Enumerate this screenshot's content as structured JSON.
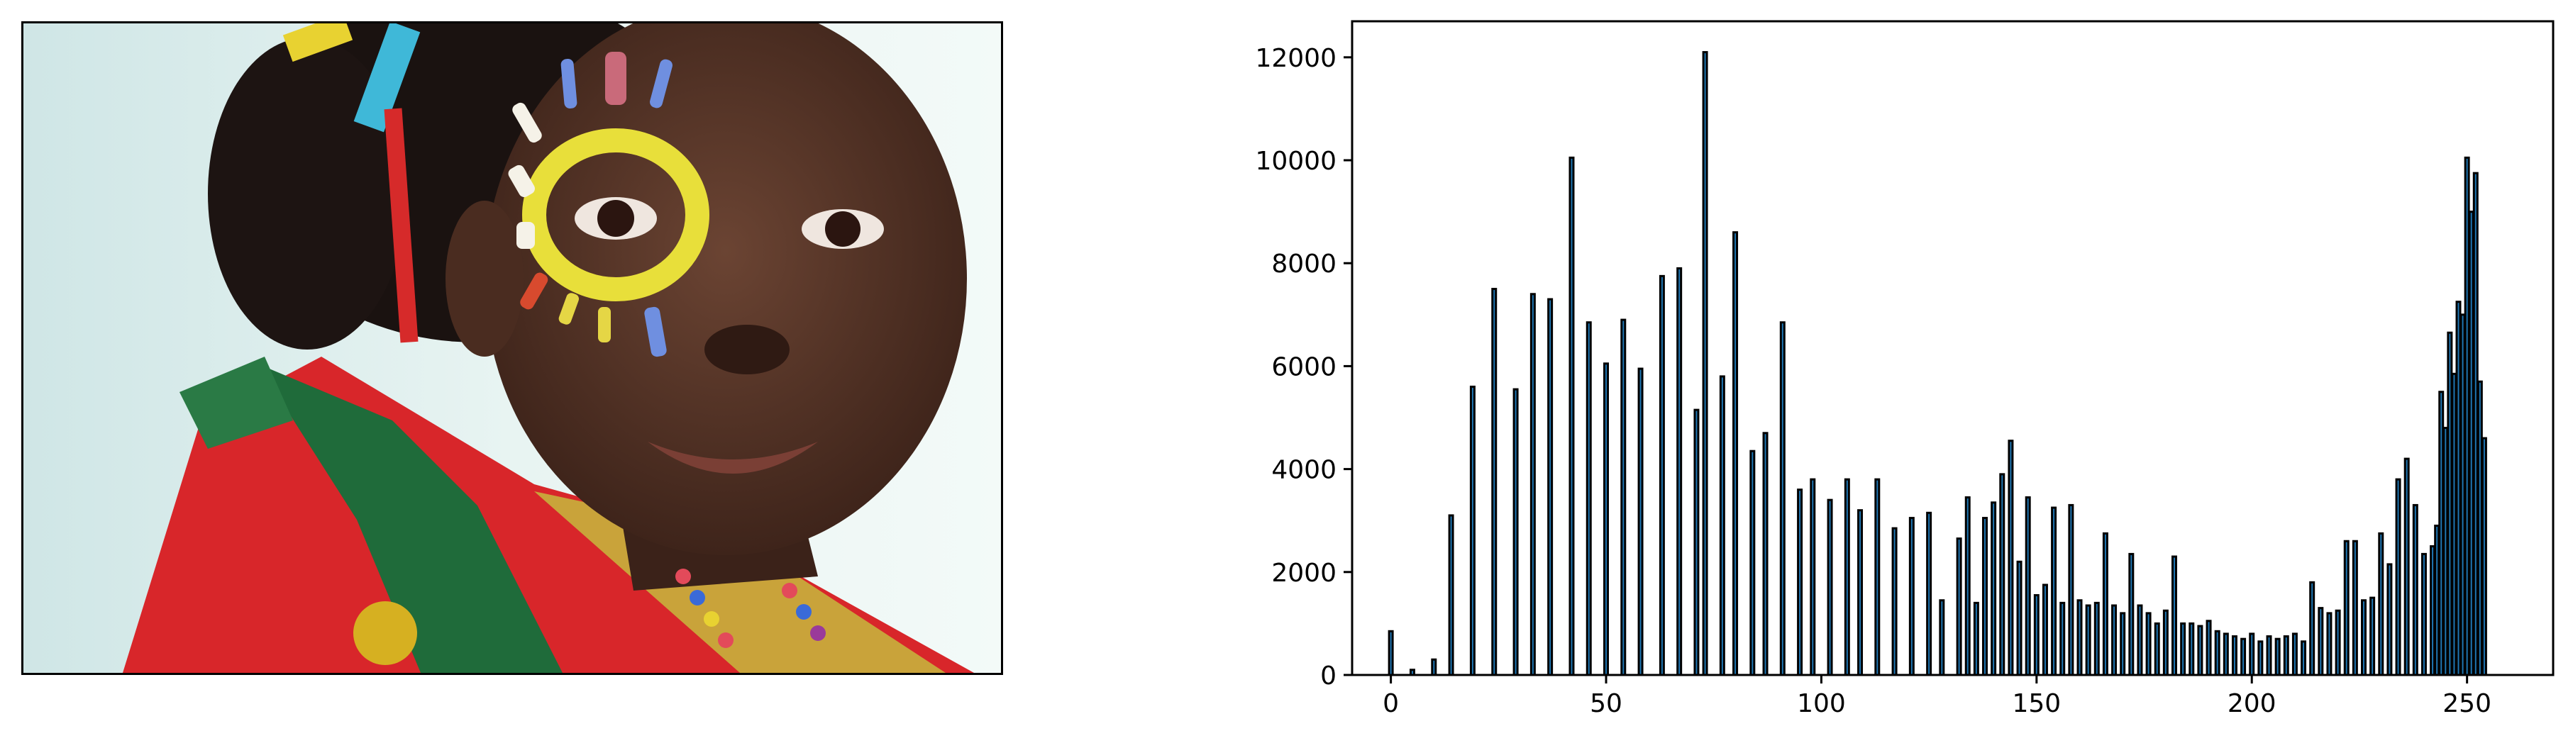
{
  "image_panel": {
    "description_icon": "portrait-photo-icon"
  },
  "chart_data": {
    "type": "bar",
    "title": "",
    "xlabel": "",
    "ylabel": "",
    "xlim": [
      -9,
      270
    ],
    "ylim": [
      0,
      12700
    ],
    "x_ticks": [
      0,
      50,
      100,
      150,
      200,
      250
    ],
    "y_ticks": [
      0,
      2000,
      4000,
      6000,
      8000,
      10000,
      12000
    ],
    "bar_color": "#1f77b4",
    "edge_color": "#000000",
    "grid": false,
    "x": [
      0,
      5,
      10,
      14,
      19,
      24,
      29,
      33,
      37,
      42,
      46,
      50,
      54,
      58,
      63,
      67,
      71,
      73,
      77,
      80,
      84,
      87,
      91,
      95,
      98,
      102,
      106,
      109,
      113,
      117,
      121,
      125,
      128,
      132,
      134,
      136,
      138,
      140,
      142,
      144,
      146,
      148,
      150,
      152,
      154,
      156,
      158,
      160,
      162,
      164,
      166,
      168,
      170,
      172,
      174,
      176,
      178,
      180,
      182,
      184,
      186,
      188,
      190,
      192,
      194,
      196,
      198,
      200,
      202,
      204,
      206,
      208,
      210,
      212,
      214,
      216,
      218,
      220,
      222,
      224,
      226,
      228,
      230,
      232,
      234,
      236,
      238,
      240,
      242,
      243,
      244,
      245,
      246,
      247,
      248,
      249,
      250,
      251,
      252,
      253,
      254,
      255
    ],
    "values": [
      850,
      100,
      300,
      3100,
      5600,
      7500,
      5550,
      7400,
      7300,
      10050,
      6850,
      6050,
      6900,
      5950,
      7750,
      7900,
      5150,
      12100,
      5800,
      8600,
      4350,
      4700,
      6850,
      3600,
      3800,
      3400,
      3800,
      3200,
      3800,
      2850,
      3050,
      3150,
      1450,
      2650,
      3450,
      1400,
      3050,
      3350,
      3900,
      4550,
      2200,
      3450,
      1550,
      1750,
      3250,
      1400,
      3300,
      1450,
      1350,
      1400,
      2750,
      1350,
      1200,
      2350,
      1350,
      1200,
      1000,
      1250,
      2300,
      1000,
      1000,
      950,
      1050,
      850,
      800,
      750,
      700,
      800,
      650,
      750,
      700,
      750,
      800,
      650,
      1800,
      1300,
      1200,
      1250,
      2600,
      2600,
      1450,
      1500,
      2750,
      2150,
      3800,
      4200,
      3300,
      2350,
      2500,
      2900,
      5500,
      4800,
      6650,
      5850,
      7250,
      7000,
      10050,
      9000,
      9750,
      5700,
      4600,
      0
    ]
  }
}
